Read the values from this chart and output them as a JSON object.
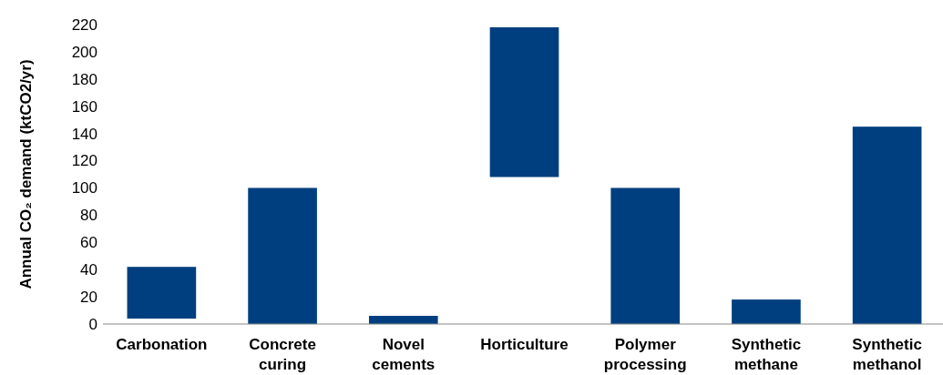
{
  "chart_data": {
    "type": "bar",
    "ylabel": "Annual CO₂ demand (ktCO2/yr)",
    "categories": [
      "Carbonation",
      "Concrete curing",
      "Novel cements",
      "Horticulture",
      "Polymer processing",
      "Synthetic methane",
      "Synthetic methanol"
    ],
    "values": [
      38,
      100,
      6,
      110,
      100,
      18,
      145
    ],
    "base": [
      4,
      0,
      0,
      108,
      0,
      0,
      0
    ],
    "color": "#003f7f",
    "ylim": [
      0,
      220
    ],
    "yticks": [
      0,
      20,
      40,
      60,
      80,
      100,
      120,
      140,
      160,
      180,
      200,
      220
    ],
    "grid": false
  }
}
